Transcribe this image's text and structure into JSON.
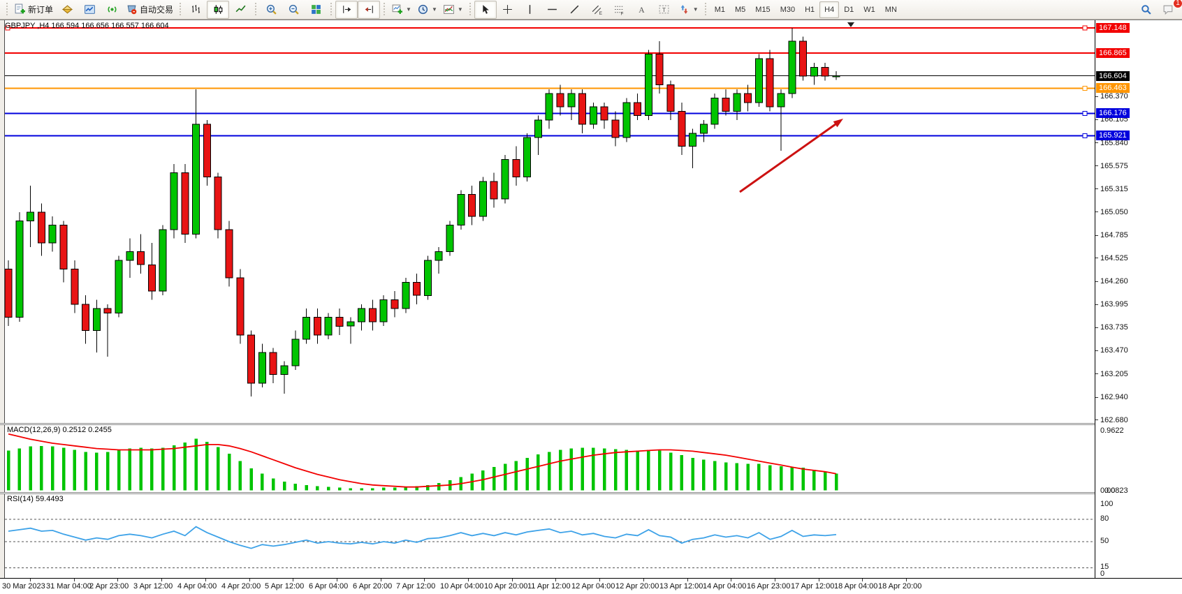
{
  "toolbar": {
    "groups": [
      {
        "items": [
          {
            "name": "new-order",
            "label": "新订单"
          },
          {
            "name": "market-watch"
          },
          {
            "name": "chart-window"
          },
          {
            "name": "signals"
          },
          {
            "name": "auto-trading",
            "label": "自动交易"
          }
        ]
      },
      {
        "items": [
          {
            "name": "bar-chart-mode"
          },
          {
            "name": "candlestick-mode",
            "active": true
          },
          {
            "name": "line-chart-mode"
          }
        ]
      },
      {
        "items": [
          {
            "name": "zoom-in"
          },
          {
            "name": "zoom-out"
          },
          {
            "name": "tile-windows"
          }
        ]
      },
      {
        "items": [
          {
            "name": "auto-scroll",
            "active": true
          },
          {
            "name": "chart-shift",
            "active": true
          }
        ]
      },
      {
        "items": [
          {
            "name": "new-chart",
            "caret": true
          },
          {
            "name": "periods",
            "caret": true
          },
          {
            "name": "indicators",
            "caret": true
          }
        ]
      },
      {
        "items": [
          {
            "name": "cursor",
            "active": true
          },
          {
            "name": "crosshair"
          },
          {
            "name": "vertical-line"
          },
          {
            "name": "horizontal-line"
          },
          {
            "name": "trend-line"
          },
          {
            "name": "equidistant-channel"
          },
          {
            "name": "fibonacci"
          },
          {
            "name": "text"
          },
          {
            "name": "text-label"
          },
          {
            "name": "arrows",
            "caret": true
          }
        ]
      }
    ],
    "timeframes": [
      "M1",
      "M5",
      "M15",
      "M30",
      "H1",
      "H4",
      "D1",
      "W1",
      "MN"
    ],
    "active_timeframe": "H4",
    "right_icons": [
      {
        "name": "search"
      },
      {
        "name": "chat",
        "badge": "1"
      }
    ]
  },
  "chart": {
    "title": "GBPJPY ,H4  166.594 166.656 166.557 166.604",
    "symbol": "GBPJPY",
    "timeframe": "H4",
    "ohlc": {
      "open": "166.594",
      "high": "166.656",
      "low": "166.557",
      "close": "166.604"
    }
  },
  "price_axis": {
    "ticks": [
      "166.370",
      "166.105",
      "165.840",
      "165.575",
      "165.315",
      "165.050",
      "164.785",
      "164.525",
      "164.260",
      "163.995",
      "163.735",
      "163.470",
      "163.205",
      "162.940",
      "162.680"
    ],
    "badges": [
      {
        "value": "167.148",
        "color": "#f20000"
      },
      {
        "value": "166.865",
        "color": "#f20000"
      },
      {
        "value": "166.604",
        "color": "#000000"
      },
      {
        "value": "166.463",
        "color": "#ff9500"
      },
      {
        "value": "166.176",
        "color": "#0000dd"
      },
      {
        "value": "165.921",
        "color": "#0000dd"
      }
    ]
  },
  "indicators": {
    "macd": {
      "label": "MACD(12,26,9) 0.2512 0.2455",
      "scale_top": "0.9622",
      "scale_bottom": [
        "0.00",
        "0.0823"
      ],
      "main_value": "0.2512",
      "signal_value": "0.2455"
    },
    "rsi": {
      "label": "RSI(14) 59.4493",
      "value": "59.4493",
      "scale": [
        "100",
        "80",
        "50",
        "15",
        "0"
      ]
    }
  },
  "time_axis": {
    "labels": [
      "30 Mar 2023",
      "31 Mar 04:00",
      "2 Apr 23:00",
      "3 Apr 12:00",
      "4 Apr 04:00",
      "4 Apr 20:00",
      "5 Apr 12:00",
      "6 Apr 04:00",
      "6 Apr 20:00",
      "7 Apr 12:00",
      "10 Apr 04:00",
      "10 Apr 20:00",
      "11 Apr 12:00",
      "12 Apr 04:00",
      "12 Apr 20:00",
      "13 Apr 12:00",
      "14 Apr 04:00",
      "16 Apr 23:00",
      "17 Apr 12:00",
      "18 Apr 04:00",
      "18 Apr 20:00"
    ]
  },
  "chart_data": [
    {
      "type": "candlestick",
      "title": "GBPJPY H4",
      "ylim": [
        162.68,
        167.35
      ],
      "up_color": "#00c400",
      "down_color": "#e81414",
      "h_lines": [
        {
          "price": 167.148,
          "color": "#f20000",
          "width": 2,
          "handles": [
            "left",
            "right"
          ]
        },
        {
          "price": 166.865,
          "color": "#f20000",
          "width": 2,
          "handles": []
        },
        {
          "price": 166.604,
          "color": "#000000",
          "width": 1,
          "handles": []
        },
        {
          "price": 166.463,
          "color": "#ff9500",
          "width": 2,
          "handles": [
            "right"
          ]
        },
        {
          "price": 166.176,
          "color": "#0000dd",
          "width": 2,
          "handles": [
            "right"
          ]
        },
        {
          "price": 165.921,
          "color": "#0000dd",
          "width": 2,
          "handles": [
            "right"
          ]
        }
      ],
      "annotations": [
        {
          "type": "arrow",
          "color": "#cc1111",
          "direction": "up-right"
        }
      ],
      "candles": [
        [
          164.4,
          164.5,
          163.75,
          163.85
        ],
        [
          163.85,
          165.05,
          163.8,
          164.95
        ],
        [
          164.95,
          165.35,
          164.65,
          165.05
        ],
        [
          165.05,
          165.15,
          164.55,
          164.7
        ],
        [
          164.7,
          165.0,
          164.6,
          164.9
        ],
        [
          164.9,
          164.95,
          164.25,
          164.4
        ],
        [
          164.4,
          164.5,
          163.9,
          164.0
        ],
        [
          164.0,
          164.1,
          163.55,
          163.7
        ],
        [
          163.7,
          164.05,
          163.45,
          163.95
        ],
        [
          163.95,
          164.0,
          163.4,
          163.9
        ],
        [
          163.9,
          164.55,
          163.85,
          164.5
        ],
        [
          164.5,
          164.75,
          164.3,
          164.6
        ],
        [
          164.6,
          164.8,
          164.35,
          164.45
        ],
        [
          164.45,
          164.7,
          164.05,
          164.15
        ],
        [
          164.15,
          164.9,
          164.1,
          164.85
        ],
        [
          164.85,
          165.6,
          164.75,
          165.5
        ],
        [
          165.5,
          165.6,
          164.7,
          164.8
        ],
        [
          164.8,
          166.45,
          164.75,
          166.05
        ],
        [
          166.05,
          166.1,
          165.35,
          165.45
        ],
        [
          165.45,
          165.5,
          164.75,
          164.85
        ],
        [
          164.85,
          164.95,
          164.2,
          164.3
        ],
        [
          164.3,
          164.4,
          163.55,
          163.65
        ],
        [
          163.65,
          163.7,
          162.95,
          163.1
        ],
        [
          163.1,
          163.55,
          163.05,
          163.45
        ],
        [
          163.45,
          163.5,
          163.1,
          163.2
        ],
        [
          163.2,
          163.35,
          162.98,
          163.3
        ],
        [
          163.3,
          163.7,
          163.25,
          163.6
        ],
        [
          163.6,
          163.95,
          163.55,
          163.85
        ],
        [
          163.85,
          163.95,
          163.55,
          163.65
        ],
        [
          163.65,
          163.9,
          163.6,
          163.85
        ],
        [
          163.85,
          163.95,
          163.65,
          163.75
        ],
        [
          163.75,
          163.85,
          163.55,
          163.8
        ],
        [
          163.8,
          164.0,
          163.7,
          163.95
        ],
        [
          163.95,
          164.05,
          163.7,
          163.8
        ],
        [
          163.8,
          164.1,
          163.75,
          164.05
        ],
        [
          164.05,
          164.15,
          163.85,
          163.95
        ],
        [
          163.95,
          164.3,
          163.9,
          164.25
        ],
        [
          164.25,
          164.35,
          164.0,
          164.1
        ],
        [
          164.1,
          164.55,
          164.05,
          164.5
        ],
        [
          164.5,
          164.65,
          164.35,
          164.6
        ],
        [
          164.6,
          164.95,
          164.55,
          164.9
        ],
        [
          164.9,
          165.3,
          164.85,
          165.25
        ],
        [
          165.25,
          165.35,
          164.9,
          165.0
        ],
        [
          165.0,
          165.45,
          164.95,
          165.4
        ],
        [
          165.4,
          165.5,
          165.1,
          165.2
        ],
        [
          165.2,
          165.7,
          165.15,
          165.65
        ],
        [
          165.65,
          165.8,
          165.35,
          165.45
        ],
        [
          165.45,
          165.95,
          165.4,
          165.9
        ],
        [
          165.9,
          166.15,
          165.7,
          166.1
        ],
        [
          166.1,
          166.45,
          166.0,
          166.4
        ],
        [
          166.4,
          166.5,
          166.15,
          166.25
        ],
        [
          166.25,
          166.45,
          166.1,
          166.4
        ],
        [
          166.4,
          166.45,
          165.95,
          166.05
        ],
        [
          166.05,
          166.3,
          166.0,
          166.25
        ],
        [
          166.25,
          166.3,
          166.0,
          166.1
        ],
        [
          166.1,
          166.2,
          165.8,
          165.9
        ],
        [
          165.9,
          166.35,
          165.85,
          166.3
        ],
        [
          166.3,
          166.4,
          166.1,
          166.15
        ],
        [
          166.15,
          166.9,
          166.1,
          166.85
        ],
        [
          166.85,
          167.0,
          166.4,
          166.5
        ],
        [
          166.5,
          166.55,
          166.1,
          166.2
        ],
        [
          166.2,
          166.3,
          165.7,
          165.8
        ],
        [
          165.8,
          166.0,
          165.55,
          165.95
        ],
        [
          165.95,
          166.1,
          165.85,
          166.05
        ],
        [
          166.05,
          166.4,
          166.0,
          166.35
        ],
        [
          166.35,
          166.45,
          166.15,
          166.2
        ],
        [
          166.2,
          166.45,
          166.1,
          166.4
        ],
        [
          166.4,
          166.5,
          166.2,
          166.3
        ],
        [
          166.3,
          166.85,
          166.25,
          166.8
        ],
        [
          166.8,
          166.9,
          166.2,
          166.25
        ],
        [
          166.25,
          166.45,
          165.75,
          166.4
        ],
        [
          166.4,
          167.15,
          166.35,
          167.0
        ],
        [
          167.0,
          167.05,
          166.55,
          166.6
        ],
        [
          166.6,
          166.75,
          166.5,
          166.7
        ],
        [
          166.7,
          166.75,
          166.55,
          166.6
        ],
        [
          166.594,
          166.656,
          166.557,
          166.604
        ]
      ]
    },
    {
      "type": "bar",
      "title": "MACD(12,26,9)",
      "ylim": [
        0,
        0.9622
      ],
      "histogram_color": "#00c400",
      "signal_color": "#f20000",
      "values": [
        0.6,
        0.63,
        0.66,
        0.67,
        0.66,
        0.64,
        0.61,
        0.58,
        0.57,
        0.58,
        0.61,
        0.63,
        0.64,
        0.63,
        0.64,
        0.68,
        0.72,
        0.78,
        0.73,
        0.65,
        0.55,
        0.44,
        0.33,
        0.25,
        0.18,
        0.13,
        0.1,
        0.08,
        0.06,
        0.05,
        0.04,
        0.03,
        0.03,
        0.03,
        0.04,
        0.04,
        0.05,
        0.06,
        0.08,
        0.11,
        0.15,
        0.2,
        0.25,
        0.3,
        0.35,
        0.4,
        0.44,
        0.49,
        0.54,
        0.58,
        0.61,
        0.63,
        0.64,
        0.64,
        0.63,
        0.62,
        0.61,
        0.6,
        0.61,
        0.6,
        0.57,
        0.53,
        0.49,
        0.46,
        0.44,
        0.42,
        0.41,
        0.4,
        0.4,
        0.38,
        0.36,
        0.35,
        0.34,
        0.31,
        0.28,
        0.25
      ],
      "signal": [
        0.85,
        0.81,
        0.77,
        0.74,
        0.71,
        0.69,
        0.67,
        0.65,
        0.63,
        0.62,
        0.61,
        0.61,
        0.61,
        0.61,
        0.62,
        0.63,
        0.65,
        0.67,
        0.69,
        0.69,
        0.67,
        0.63,
        0.58,
        0.52,
        0.46,
        0.4,
        0.34,
        0.29,
        0.24,
        0.2,
        0.16,
        0.13,
        0.1,
        0.08,
        0.07,
        0.06,
        0.05,
        0.05,
        0.06,
        0.07,
        0.08,
        0.1,
        0.13,
        0.16,
        0.2,
        0.24,
        0.28,
        0.32,
        0.36,
        0.4,
        0.44,
        0.47,
        0.5,
        0.53,
        0.55,
        0.57,
        0.58,
        0.59,
        0.6,
        0.61,
        0.61,
        0.6,
        0.59,
        0.57,
        0.55,
        0.53,
        0.5,
        0.47,
        0.44,
        0.41,
        0.38,
        0.35,
        0.32,
        0.3,
        0.28,
        0.25
      ]
    },
    {
      "type": "line",
      "title": "RSI(14)",
      "ylim": [
        0,
        100
      ],
      "line_color": "#3da2e8",
      "levels": [
        80,
        50,
        15
      ],
      "values": [
        64,
        66,
        68,
        64,
        65,
        60,
        56,
        52,
        55,
        53,
        58,
        60,
        58,
        55,
        60,
        64,
        58,
        70,
        62,
        56,
        50,
        45,
        41,
        46,
        44,
        46,
        49,
        52,
        48,
        50,
        48,
        47,
        49,
        47,
        50,
        48,
        52,
        49,
        54,
        55,
        58,
        62,
        58,
        61,
        58,
        62,
        59,
        63,
        65,
        67,
        62,
        64,
        59,
        61,
        57,
        55,
        60,
        58,
        66,
        58,
        56,
        48,
        53,
        55,
        59,
        56,
        58,
        55,
        62,
        53,
        57,
        65,
        57,
        59,
        58,
        59.45
      ]
    }
  ]
}
